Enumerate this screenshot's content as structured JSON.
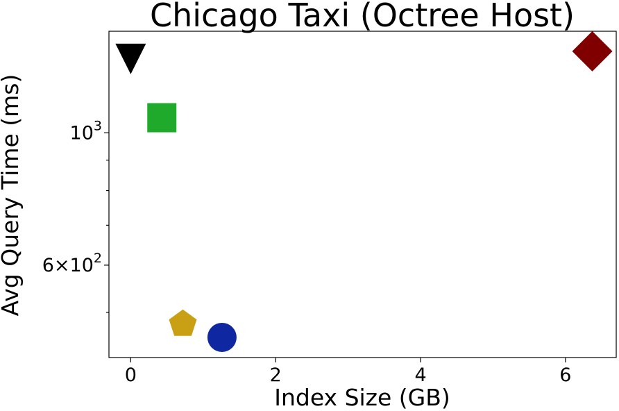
{
  "chart_data": {
    "type": "scatter",
    "title": "Chicago Taxi (Octree Host)",
    "xlabel": "Index Size (GB)",
    "ylabel": "Avg Query Time (ms)",
    "xlim": [
      -0.3,
      6.7
    ],
    "ylim": [
      420,
      1480
    ],
    "y_scale": "log",
    "x_ticks": [
      0,
      2,
      4,
      6
    ],
    "x_tick_labels": [
      "0",
      "2",
      "4",
      "6"
    ],
    "y_major_ticks": [
      1000,
      600
    ],
    "y_major_tick_labels": [
      {
        "base": "10",
        "exp": "3"
      },
      {
        "base": "6×10",
        "exp": "2"
      }
    ],
    "y_minor_ticks": [
      500,
      700,
      800,
      900
    ],
    "grid": false,
    "points": [
      {
        "x": 0.0,
        "y": 1330,
        "marker": "triangle-down",
        "color": "#000000"
      },
      {
        "x": 0.43,
        "y": 1060,
        "marker": "square",
        "color": "#1faa2c"
      },
      {
        "x": 0.72,
        "y": 478,
        "marker": "pentagon",
        "color": "#c9a013"
      },
      {
        "x": 1.26,
        "y": 454,
        "marker": "circle",
        "color": "#0f27a0"
      },
      {
        "x": 6.37,
        "y": 1370,
        "marker": "diamond",
        "color": "#800000"
      }
    ]
  }
}
